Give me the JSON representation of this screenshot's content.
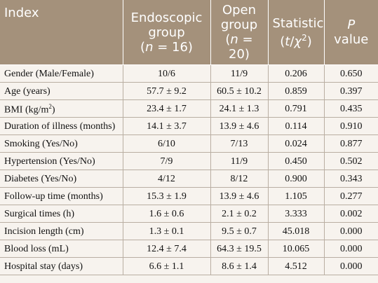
{
  "header": [
    [
      "Index"
    ],
    [
      "Endoscopic",
      "group",
      "(",
      "n",
      " = 16)"
    ],
    [
      "Open",
      "group",
      "(",
      "n",
      " = 20)"
    ],
    [
      "Statistic",
      "(",
      "t",
      "/",
      "χ",
      "2",
      ")"
    ],
    [
      "P",
      "value"
    ]
  ],
  "table": {
    "rows": [
      [
        "Gender (Male/Female)",
        "10/6",
        "11/9",
        "0.206",
        "0.650"
      ],
      [
        "Age (years)",
        "57.7 ± 9.2",
        "60.5 ± 10.2",
        "0.859",
        "0.397"
      ],
      [
        [
          "BMI (kg/m",
          "2",
          ")"
        ],
        "23.4 ± 1.7",
        "24.1 ± 1.3",
        "0.791",
        "0.435"
      ],
      [
        "Duration of illness (months)",
        "14.1 ± 3.7",
        "13.9 ± 4.6",
        "0.114",
        "0.910"
      ],
      [
        "Smoking (Yes/No)",
        "6/10",
        "7/13",
        "0.024",
        "0.877"
      ],
      [
        "Hypertension (Yes/No)",
        "7/9",
        "11/9",
        "0.450",
        "0.502"
      ],
      [
        "Diabetes (Yes/No)",
        "4/12",
        "8/12",
        "0.900",
        "0.343"
      ],
      [
        "Follow-up time (months)",
        "15.3 ± 1.9",
        "13.9 ± 4.6",
        "1.105",
        "0.277"
      ],
      [
        "Surgical times (h)",
        "1.6 ± 0.6",
        "2.1 ± 0.2",
        "3.333",
        "0.002"
      ],
      [
        "Incision length (cm)",
        "1.3 ± 0.1",
        "9.5 ± 0.7",
        "45.018",
        "0.000"
      ],
      [
        "Blood loss (mL)",
        "12.4 ± 7.4",
        "64.3 ± 19.5",
        "10.065",
        "0.000"
      ],
      [
        "Hospital stay (days)",
        "6.6 ± 1.1",
        "8.6 ± 1.4",
        "4.512",
        "0.000"
      ]
    ]
  }
}
